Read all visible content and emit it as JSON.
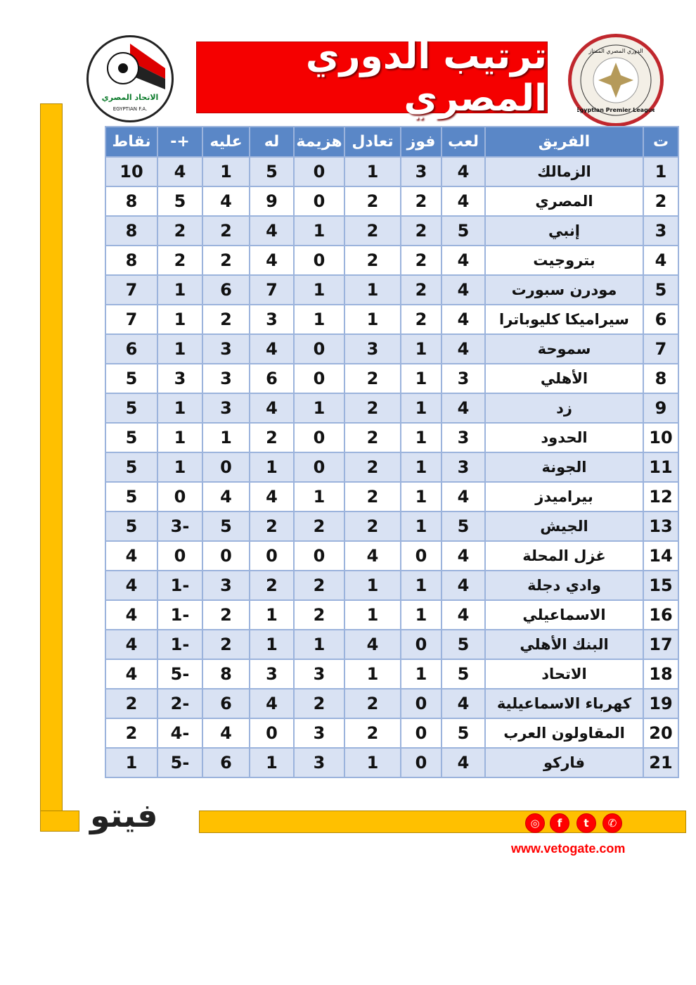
{
  "title": "ترتيب الدوري المصري",
  "logos": {
    "left": "الاتحاد المصري لكرة القدم EGYPTIAN F.A.",
    "right": "الدوري المصري الممتاز Egyptian Premier League",
    "brand": "فيتو"
  },
  "table": {
    "headers": [
      "ت",
      "الفريق",
      "لعب",
      "فوز",
      "تعادل",
      "هزيمة",
      "له",
      "عليه",
      "+-",
      "نقاط"
    ],
    "rows": [
      [
        "1",
        "الزمالك",
        "4",
        "3",
        "1",
        "0",
        "5",
        "1",
        "4",
        "10"
      ],
      [
        "2",
        "المصري",
        "4",
        "2",
        "2",
        "0",
        "9",
        "4",
        "5",
        "8"
      ],
      [
        "3",
        "إنبي",
        "5",
        "2",
        "2",
        "1",
        "4",
        "2",
        "2",
        "8"
      ],
      [
        "4",
        "بتروجيت",
        "4",
        "2",
        "2",
        "0",
        "4",
        "2",
        "2",
        "8"
      ],
      [
        "5",
        "مودرن سبورت",
        "4",
        "2",
        "1",
        "1",
        "7",
        "6",
        "1",
        "7"
      ],
      [
        "6",
        "سيراميكا كليوباترا",
        "4",
        "2",
        "1",
        "1",
        "3",
        "2",
        "1",
        "7"
      ],
      [
        "7",
        "سموحة",
        "4",
        "1",
        "3",
        "0",
        "4",
        "3",
        "1",
        "6"
      ],
      [
        "8",
        "الأهلي",
        "3",
        "1",
        "2",
        "0",
        "6",
        "3",
        "3",
        "5"
      ],
      [
        "9",
        "زد",
        "4",
        "1",
        "2",
        "1",
        "4",
        "3",
        "1",
        "5"
      ],
      [
        "10",
        "الحدود",
        "3",
        "1",
        "2",
        "0",
        "2",
        "1",
        "1",
        "5"
      ],
      [
        "11",
        "الجونة",
        "3",
        "1",
        "2",
        "0",
        "1",
        "0",
        "1",
        "5"
      ],
      [
        "12",
        "بيراميدز",
        "4",
        "1",
        "2",
        "1",
        "4",
        "4",
        "0",
        "5"
      ],
      [
        "13",
        "الجيش",
        "5",
        "1",
        "2",
        "2",
        "2",
        "5",
        "-3",
        "5"
      ],
      [
        "14",
        "غزل المحلة",
        "4",
        "0",
        "4",
        "0",
        "0",
        "0",
        "0",
        "4"
      ],
      [
        "15",
        "وادي دجلة",
        "4",
        "1",
        "1",
        "2",
        "2",
        "3",
        "-1",
        "4"
      ],
      [
        "16",
        "الاسماعيلي",
        "4",
        "1",
        "1",
        "2",
        "1",
        "2",
        "-1",
        "4"
      ],
      [
        "17",
        "البنك الأهلي",
        "5",
        "0",
        "4",
        "1",
        "1",
        "2",
        "-1",
        "4"
      ],
      [
        "18",
        "الاتحاد",
        "5",
        "1",
        "1",
        "3",
        "3",
        "8",
        "-5",
        "4"
      ],
      [
        "19",
        "كهرباء الاسماعيلية",
        "4",
        "0",
        "2",
        "2",
        "4",
        "6",
        "-2",
        "2"
      ],
      [
        "20",
        "المقاولون العرب",
        "5",
        "0",
        "2",
        "3",
        "0",
        "4",
        "-4",
        "2"
      ],
      [
        "21",
        "فاركو",
        "4",
        "0",
        "1",
        "3",
        "1",
        "6",
        "-5",
        "1"
      ]
    ]
  },
  "footer": {
    "url": "www.vetogate.com",
    "social_icons": [
      "instagram-icon",
      "facebook-icon",
      "twitter-icon",
      "whatsapp-icon"
    ]
  },
  "colors": {
    "header": "#5a87c7",
    "odd_row": "#d9e2f3",
    "title_bg": "#f50000",
    "frame": "#ffc000",
    "url": "#ff0000"
  }
}
